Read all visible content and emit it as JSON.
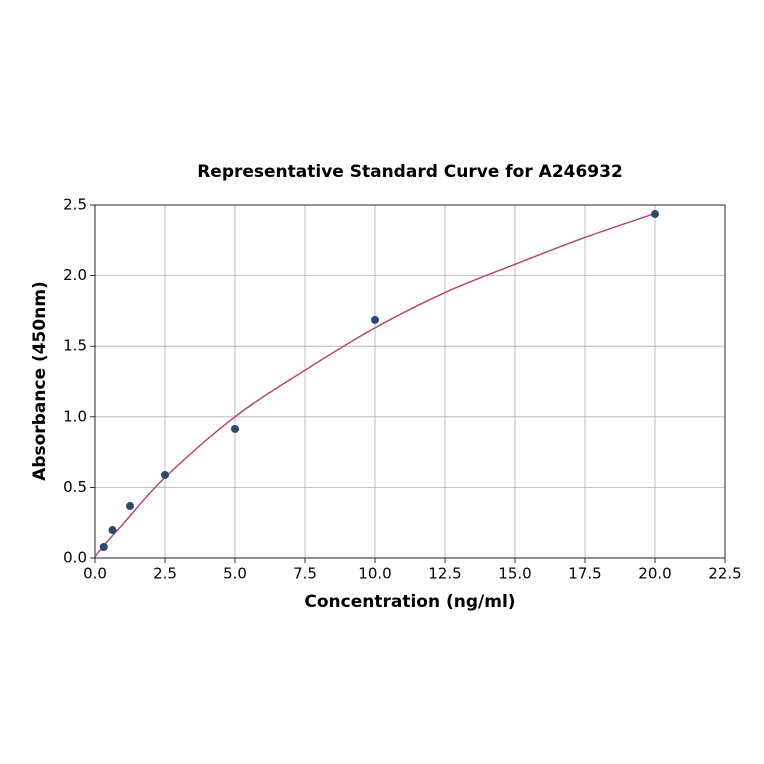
{
  "chart_data": {
    "type": "scatter",
    "title": "Representative Standard Curve for A246932",
    "x_label": "Concentration (ng/ml)",
    "y_label": "Absorbance (450nm)",
    "xlim": [
      0,
      22.5
    ],
    "ylim": [
      0,
      2.5
    ],
    "xticks": [
      {
        "value": 0,
        "label": "0.0"
      },
      2.5,
      {
        "value": 5,
        "label": "5.0"
      },
      7.5,
      {
        "value": 10,
        "label": "10.0"
      },
      12.5,
      {
        "value": 15,
        "label": "15.0"
      },
      17.5,
      {
        "value": 20,
        "label": "20.0"
      },
      22.5
    ],
    "yticks": [
      {
        "value": 0,
        "label": "0.0"
      },
      0.5,
      {
        "value": 1,
        "label": "1.0"
      },
      1.5,
      {
        "value": 2,
        "label": "2.0"
      },
      2.5
    ],
    "grid": true,
    "series": [
      {
        "kind": "points",
        "color": "#2c4a6e",
        "x": [
          0.3125,
          0.625,
          1.25,
          2.5,
          5,
          10,
          20
        ],
        "values": [
          0.078,
          0.198,
          0.368,
          0.588,
          0.914,
          1.686,
          2.436
        ]
      },
      {
        "kind": "curve",
        "color": "#b5486a",
        "x": [
          0,
          0.5,
          1,
          2.5,
          5,
          7.5,
          10,
          12.5,
          15,
          17.5,
          20
        ],
        "values": [
          0.01,
          0.13,
          0.24,
          0.57,
          1.0,
          1.33,
          1.63,
          1.88,
          2.08,
          2.27,
          2.44
        ]
      }
    ]
  }
}
